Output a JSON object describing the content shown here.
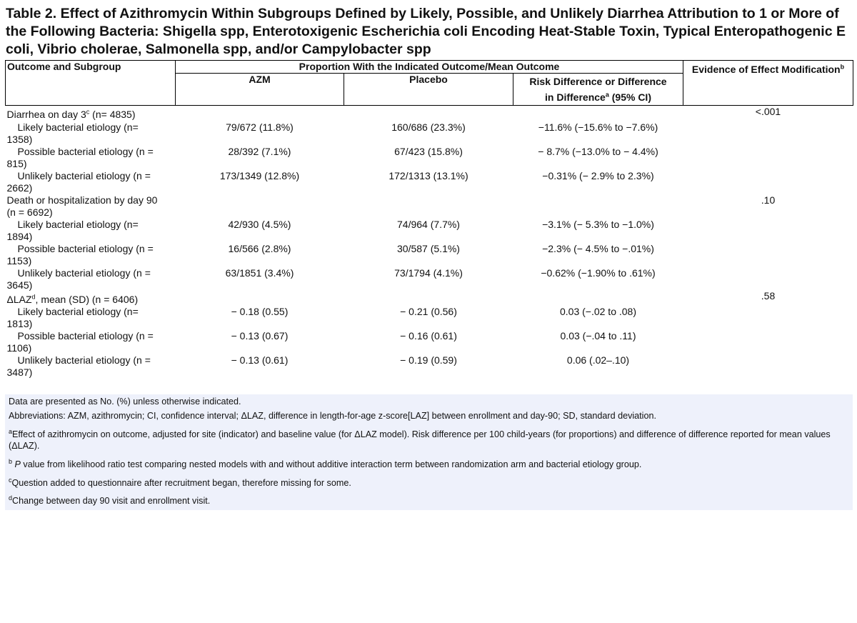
{
  "title": "Table 2. Effect of Azithromycin Within Subgroups Defined by Likely, Possible, and Unlikely Diarrhea Attribution to 1 or More of the Following Bacteria: Shigella spp, Enterotoxigenic Escherichia coli Encoding Heat-Stable Toxin, Typical Enteropathogenic E coli, Vibrio cholerae, Salmonella spp, and/or Campylobacter spp",
  "header": {
    "col1": "Outcome and Subgroup",
    "span": "Proportion With the Indicated Outcome/Mean Outcome",
    "azm": "AZM",
    "placebo": "Placebo",
    "risk_line1": "Risk Difference or Difference",
    "risk_line2": "in Difference",
    "risk_sup": "a",
    "risk_line2_end": " (95% CI)",
    "evidence": "Evidence of Effect Modification",
    "evidence_sup": "b"
  },
  "groups": [
    {
      "label": "Diarrhea on day 3",
      "label_sup": "c",
      "label_end": " (n= 4835)",
      "p": "<.001",
      "rows": [
        {
          "line1": "Likely bacterial etiology (n=",
          "line2": "1358)",
          "azm": "79/672 (11.8%)",
          "placebo": "160/686 (23.3%)",
          "diff": "−11.6% (−15.6% to −7.6%)"
        },
        {
          "line1": "Possible bacterial etiology (n =",
          "line2": "815)",
          "azm": "28/392 (7.1%)",
          "placebo": "67/423 (15.8%)",
          "diff": "− 8.7% (−13.0% to − 4.4%)"
        },
        {
          "line1": "Unlikely bacterial etiology (n =",
          "line2": "2662)",
          "azm": "173/1349 (12.8%)",
          "placebo": "172/1313 (13.1%)",
          "diff": "−0.31% (− 2.9% to 2.3%)"
        }
      ]
    },
    {
      "label": "Death or hospitalization by day 90",
      "label_line2": "(n = 6692)",
      "p": ".10",
      "rows": [
        {
          "line1": "Likely bacterial etiology (n=",
          "line2": "1894)",
          "azm": "42/930 (4.5%)",
          "placebo": "74/964 (7.7%)",
          "diff": "−3.1% (− 5.3% to −1.0%)"
        },
        {
          "line1": "Possible bacterial etiology (n =",
          "line2": "1153)",
          "azm": "16/566 (2.8%)",
          "placebo": "30/587 (5.1%)",
          "diff": "−2.3% (− 4.5% to −.01%)"
        },
        {
          "line1": "Unlikely bacterial etiology (n =",
          "line2": "3645)",
          "azm": "63/1851 (3.4%)",
          "placebo": "73/1794 (4.1%)",
          "diff": "−0.62% (−1.90% to .61%)"
        }
      ]
    },
    {
      "label": "ΔLAZ",
      "label_sup": "d",
      "label_end": ", mean (SD) (n = 6406)",
      "p": ".58",
      "rows": [
        {
          "line1": "Likely bacterial etiology (n=",
          "line2": "1813)",
          "azm": "− 0.18 (0.55)",
          "placebo": "− 0.21 (0.56)",
          "diff": "0.03 (−.02 to .08)"
        },
        {
          "line1": "Possible bacterial etiology (n =",
          "line2": "1106)",
          "azm": "− 0.13 (0.67)",
          "placebo": "− 0.16 (0.61)",
          "diff": "0.03 (−.04 to .11)"
        },
        {
          "line1": "Unlikely bacterial etiology (n =",
          "line2": "3487)",
          "azm": "− 0.13 (0.61)",
          "placebo": "− 0.19 (0.59)",
          "diff": "0.06 (.02–.10)"
        }
      ]
    }
  ],
  "footnotes": {
    "data_note": "Data are presented as No. (%) unless otherwise indicated.",
    "abbreviations": "Abbreviations: AZM, azithromycin; CI, confidence interval; ΔLAZ, difference in length-for-age z-score[LAZ] between enrollment and day-90; SD, standard deviation.",
    "a_sup": "a",
    "a_text": "Effect of azithromycin on outcome, adjusted for site (indicator) and baseline value (for ΔLAZ model). Risk difference per 100 child-years (for proportions) and difference of difference reported for mean values (ΔLAZ).",
    "b_sup": "b",
    "b_italic": "P",
    "b_text": " value from likelihood ratio test comparing nested models with and without additive interaction term between randomization arm and bacterial etiology group.",
    "c_sup": "c",
    "c_text": "Question added to questionnaire after recruitment began, therefore missing for some.",
    "d_sup": "d",
    "d_text": "Change between day 90 visit and enrollment visit."
  }
}
